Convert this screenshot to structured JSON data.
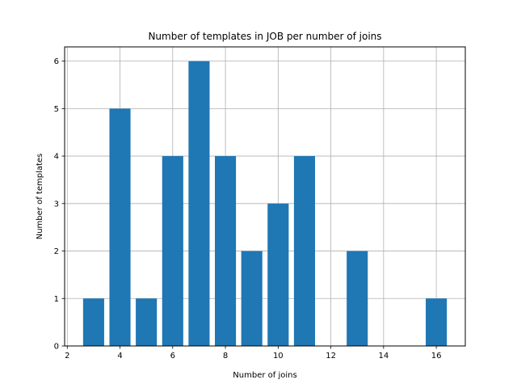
{
  "chart_data": {
    "type": "bar",
    "title": "Number of templates in JOB per number of joins",
    "xlabel": "Number of joins",
    "ylabel": "Number of templates",
    "x": [
      3,
      4,
      5,
      6,
      7,
      8,
      9,
      10,
      11,
      13,
      16
    ],
    "values": [
      1,
      5,
      1,
      4,
      6,
      4,
      2,
      3,
      4,
      2,
      1
    ],
    "xlim": [
      1.9,
      17.1
    ],
    "ylim": [
      0,
      6.3
    ],
    "xticks": [
      2,
      4,
      6,
      8,
      10,
      12,
      14,
      16
    ],
    "yticks": [
      0,
      1,
      2,
      3,
      4,
      5,
      6
    ],
    "bar_width": 0.8,
    "grid": true,
    "color": "#1f77b4"
  }
}
